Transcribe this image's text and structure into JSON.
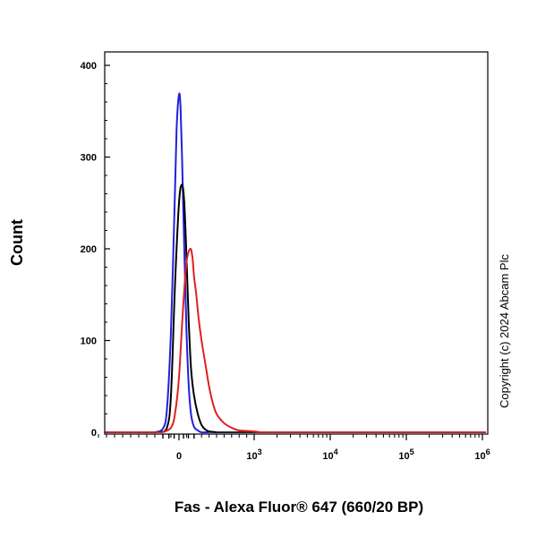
{
  "chart_data": {
    "type": "line",
    "title": "",
    "xlabel": "Fas - Alexa Fluor® 647 (660/20 BP)",
    "ylabel": "Count",
    "x_scale": "biexponential",
    "xlim": [
      -1000,
      1000000
    ],
    "ylim": [
      0,
      420
    ],
    "y_ticks": [
      0,
      100,
      200,
      300,
      400
    ],
    "x_ticks": [
      {
        "value": 0,
        "label": "0"
      },
      {
        "value": 1000,
        "base": "10",
        "exp": "3"
      },
      {
        "value": 10000,
        "base": "10",
        "exp": "4"
      },
      {
        "value": 100000,
        "base": "10",
        "exp": "5"
      },
      {
        "value": 1000000,
        "base": "10",
        "exp": "6"
      }
    ],
    "grid": false,
    "legend": "none",
    "series": [
      {
        "color": "#2020e0",
        "x": [
          -300,
          -200,
          -150,
          -100,
          -60,
          -30,
          0,
          20,
          40,
          70,
          100,
          130,
          160,
          200,
          250,
          300,
          400
        ],
        "y": [
          0,
          4,
          25,
          110,
          230,
          330,
          368,
          355,
          300,
          200,
          110,
          50,
          20,
          6,
          2,
          0,
          0
        ]
      },
      {
        "color": "#000000",
        "x": [
          -250,
          -150,
          -100,
          -50,
          0,
          40,
          70,
          100,
          130,
          160,
          200,
          250,
          300,
          350,
          400,
          500
        ],
        "y": [
          0,
          5,
          40,
          160,
          250,
          270,
          250,
          190,
          120,
          70,
          40,
          20,
          8,
          3,
          1,
          0
        ]
      },
      {
        "color": "#e02020",
        "x": [
          -200,
          -100,
          -50,
          0,
          50,
          100,
          150,
          180,
          200,
          230,
          260,
          300,
          350,
          400,
          450,
          500,
          600,
          700,
          800,
          1000,
          1200
        ],
        "y": [
          0,
          5,
          20,
          60,
          130,
          185,
          200,
          190,
          170,
          150,
          125,
          100,
          75,
          50,
          32,
          20,
          10,
          5,
          2,
          1,
          0
        ]
      }
    ]
  },
  "copyright": "Copyright (c) 2024 Abcam Plc"
}
